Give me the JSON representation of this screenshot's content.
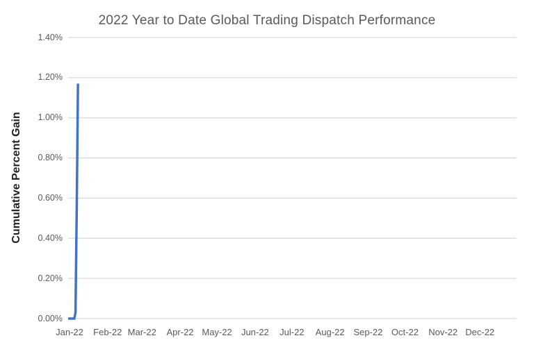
{
  "chart_data": {
    "type": "line",
    "title": "2022 Year to Date Global Trading Dispatch Performance",
    "xlabel": "",
    "ylabel": "Cumulative Percent Gain",
    "ylim": [
      0,
      1.4
    ],
    "y_unit": "percent",
    "grid": "horizontal-only",
    "legend_position": "none",
    "y_ticks": [
      {
        "label": "0.00%",
        "value": 0.0
      },
      {
        "label": "0.20%",
        "value": 0.2
      },
      {
        "label": "0.40%",
        "value": 0.4
      },
      {
        "label": "0.60%",
        "value": 0.6
      },
      {
        "label": "0.80%",
        "value": 0.8
      },
      {
        "label": "1.00%",
        "value": 1.0
      },
      {
        "label": "1.20%",
        "value": 1.2
      },
      {
        "label": "1.40%",
        "value": 1.4
      }
    ],
    "x_ticks": [
      {
        "label": "Jan-22",
        "day": 0
      },
      {
        "label": "Feb-22",
        "day": 31
      },
      {
        "label": "Mar-22",
        "day": 59
      },
      {
        "label": "Apr-22",
        "day": 90
      },
      {
        "label": "May-22",
        "day": 120
      },
      {
        "label": "Jun-22",
        "day": 151
      },
      {
        "label": "Jul-22",
        "day": 181
      },
      {
        "label": "Aug-22",
        "day": 212
      },
      {
        "label": "Sep-22",
        "day": 243
      },
      {
        "label": "Oct-22",
        "day": 273
      },
      {
        "label": "Nov-22",
        "day": 304
      },
      {
        "label": "Dec-22",
        "day": 334
      }
    ],
    "x_axis_span_days": 365,
    "series": [
      {
        "name": "Cumulative Percent Gain",
        "color": "#4472C4",
        "peak_value_pct": 1.17,
        "points": [
          {
            "day": 0,
            "value": 0.0
          },
          {
            "day": 1,
            "value": 0.0
          },
          {
            "day": 2,
            "value": 0.0
          },
          {
            "day": 3,
            "value": 0.0
          },
          {
            "day": 4,
            "value": 0.0
          },
          {
            "day": 5,
            "value": 0.0
          },
          {
            "day": 6,
            "value": 0.03
          },
          {
            "day": 7,
            "value": 0.55
          },
          {
            "day": 8,
            "value": 1.17
          }
        ]
      }
    ]
  },
  "colors": {
    "line": "#4472C4",
    "gridline": "#D9D9D9",
    "title_text": "#595959",
    "tick_text": "#595959",
    "axis_title_text": "#1f1f1f",
    "background": "#FFFFFF"
  }
}
